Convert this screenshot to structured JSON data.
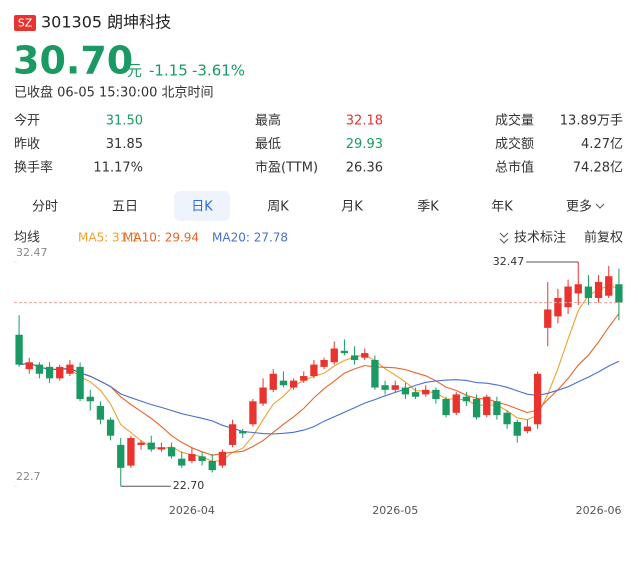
{
  "header": {
    "market": "SZ",
    "code_name": "301305 朗坤科技",
    "price": "30.70",
    "unit": "元",
    "change": "-1.15",
    "change_pct": "-3.61%",
    "status": "已收盘 06-05 15:30:00 北京时间"
  },
  "stats": [
    {
      "label": "今开",
      "value": "31.50",
      "color": "#1a9a62"
    },
    {
      "label": "最高",
      "value": "32.18",
      "color": "#e8332e"
    },
    {
      "label": "成交量",
      "value": "13.89万手",
      "color": "#333333"
    },
    {
      "label": "昨收",
      "value": "31.85",
      "color": "#333333"
    },
    {
      "label": "最低",
      "value": "29.93",
      "color": "#1a9a62"
    },
    {
      "label": "成交额",
      "value": "4.27亿",
      "color": "#333333"
    },
    {
      "label": "换手率",
      "value": "11.17%",
      "color": "#333333"
    },
    {
      "label": "市盈(TTM)",
      "value": "26.36",
      "color": "#333333"
    },
    {
      "label": "总市值",
      "value": "74.28亿",
      "color": "#333333"
    }
  ],
  "tabs": [
    "分时",
    "五日",
    "日K",
    "周K",
    "月K",
    "季K",
    "年K",
    "更多"
  ],
  "selected_tab": "日K",
  "ma_title": "均线",
  "tools": [
    "技术标注",
    "前复权"
  ],
  "chart_data": {
    "type": "candlestick",
    "up_color": "#e8332e",
    "down_color": "#1a9a62",
    "ylim": [
      22.1,
      32.6
    ],
    "yticks": [
      32.47,
      22.7
    ],
    "annotations": [
      "32.47",
      "22.70"
    ],
    "ma": [
      {
        "label": "MA5: 31.1",
        "color": "#f0a030"
      },
      {
        "label": "MA10: 29.94",
        "color": "#e8652a"
      },
      {
        "label": "MA20: 27.78",
        "color": "#4a6fd0"
      }
    ],
    "categories": [
      null,
      null,
      null,
      null,
      null,
      null,
      null,
      null,
      null,
      null,
      null,
      null,
      null,
      null,
      null,
      null,
      null,
      "2026-04",
      null,
      null,
      null,
      null,
      null,
      null,
      null,
      null,
      null,
      null,
      null,
      null,
      null,
      null,
      null,
      null,
      null,
      null,
      null,
      "2026-05",
      null,
      null,
      null,
      null,
      null,
      null,
      null,
      null,
      null,
      null,
      null,
      null,
      null,
      null,
      null,
      null,
      null,
      null,
      null,
      "2026-06",
      null,
      null
    ],
    "open": [
      29.3,
      27.8,
      28.0,
      27.9,
      27.4,
      27.6,
      27.9,
      26.6,
      26.2,
      25.6,
      24.5,
      23.6,
      24.5,
      24.6,
      24.3,
      24.4,
      23.9,
      23.8,
      24.0,
      23.8,
      23.6,
      24.5,
      25.1,
      25.4,
      26.3,
      26.9,
      27.3,
      27.0,
      27.3,
      27.5,
      27.9,
      28.1,
      28.6,
      28.4,
      28.3,
      28.2,
      27.1,
      26.9,
      27.0,
      26.8,
      26.7,
      26.9,
      26.5,
      25.9,
      26.6,
      26.5,
      25.8,
      26.4,
      25.9,
      25.5,
      25.1,
      25.4,
      29.6,
      30.1,
      30.5,
      31.1,
      31.4,
      30.9,
      31.0,
      31.5
    ],
    "close": [
      28.0,
      28.1,
      27.6,
      27.4,
      27.9,
      28.0,
      26.5,
      26.4,
      25.6,
      24.9,
      23.5,
      24.8,
      24.6,
      24.3,
      24.4,
      24.0,
      23.6,
      24.1,
      23.8,
      23.4,
      24.2,
      25.4,
      25.0,
      26.4,
      27.0,
      27.6,
      27.1,
      27.3,
      27.5,
      28.0,
      28.2,
      28.7,
      28.5,
      28.2,
      28.5,
      27.0,
      26.9,
      27.1,
      26.7,
      26.6,
      26.9,
      26.5,
      25.8,
      26.7,
      26.4,
      25.7,
      26.6,
      25.8,
      25.4,
      24.9,
      25.3,
      27.6,
      30.4,
      30.9,
      31.4,
      31.5,
      30.9,
      31.6,
      31.85,
      30.7
    ],
    "high": [
      30.15,
      28.3,
      28.1,
      28.1,
      28.0,
      28.2,
      28.1,
      26.9,
      26.4,
      25.7,
      24.8,
      24.9,
      24.7,
      24.9,
      24.6,
      24.6,
      24.2,
      24.4,
      24.2,
      24.1,
      24.3,
      25.6,
      25.2,
      26.5,
      27.4,
      27.8,
      27.7,
      27.4,
      27.7,
      28.2,
      28.3,
      29.0,
      29.1,
      28.8,
      28.7,
      28.4,
      27.3,
      27.3,
      27.2,
      27.0,
      27.1,
      27.0,
      26.6,
      26.8,
      26.8,
      26.7,
      26.7,
      26.6,
      26.0,
      25.6,
      25.6,
      27.7,
      31.6,
      31.3,
      31.7,
      32.47,
      31.9,
      31.9,
      32.3,
      32.18
    ],
    "low": [
      27.9,
      27.6,
      27.4,
      27.2,
      27.3,
      27.5,
      26.4,
      26.0,
      25.4,
      24.7,
      22.7,
      23.5,
      24.3,
      24.2,
      24.2,
      23.9,
      23.5,
      23.7,
      23.6,
      23.3,
      23.5,
      24.4,
      24.8,
      25.3,
      26.2,
      26.8,
      27.0,
      26.9,
      27.2,
      27.4,
      27.8,
      28.0,
      28.4,
      28.0,
      28.2,
      26.9,
      26.7,
      26.8,
      26.5,
      26.5,
      26.6,
      26.3,
      25.7,
      25.8,
      26.2,
      25.6,
      25.7,
      25.6,
      25.2,
      24.6,
      25.0,
      25.2,
      28.8,
      29.8,
      30.2,
      30.6,
      30.6,
      30.7,
      30.9,
      29.93
    ]
  }
}
